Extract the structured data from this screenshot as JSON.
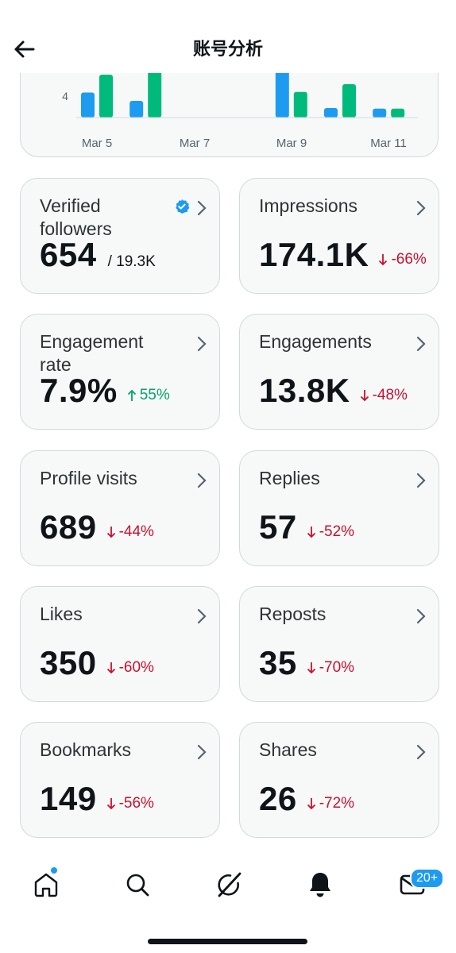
{
  "header": {
    "title": "账号分析"
  },
  "chart": {
    "y_tick": "4",
    "x_labels": [
      "Mar 5",
      "Mar 7",
      "Mar 9",
      "Mar 11"
    ],
    "colors": {
      "blue": "#1d9bf0",
      "green": "#00ba7c"
    }
  },
  "chart_data": {
    "type": "bar",
    "categories": [
      "Mar 5",
      "Mar 6",
      "Mar 7",
      "Mar 8",
      "Mar 9",
      "Mar 10",
      "Mar 11"
    ],
    "series": [
      {
        "values": [
          4.2,
          2.8,
          0,
          0,
          8.5,
          1.6,
          1.5
        ]
      },
      {
        "values": [
          7.2,
          10,
          0,
          0,
          4.3,
          5.6,
          1.5
        ]
      }
    ],
    "ytick": 4
  },
  "cards": [
    {
      "label": "Verified followers",
      "value": "654",
      "sub": "/ 19.3K",
      "verified": true
    },
    {
      "label": "Impressions",
      "value": "174.1K",
      "change": "-66%",
      "direction": "down"
    },
    {
      "label": "Engagement rate",
      "value": "7.9%",
      "change": "55%",
      "direction": "up"
    },
    {
      "label": "Engagements",
      "value": "13.8K",
      "change": "-48%",
      "direction": "down"
    },
    {
      "label": "Profile visits",
      "value": "689",
      "change": "-44%",
      "direction": "down"
    },
    {
      "label": "Replies",
      "value": "57",
      "change": "-52%",
      "direction": "down"
    },
    {
      "label": "Likes",
      "value": "350",
      "change": "-60%",
      "direction": "down"
    },
    {
      "label": "Reposts",
      "value": "35",
      "change": "-70%",
      "direction": "down"
    },
    {
      "label": "Bookmarks",
      "value": "149",
      "change": "-56%",
      "direction": "down"
    },
    {
      "label": "Shares",
      "value": "26",
      "change": "-72%",
      "direction": "down"
    }
  ],
  "tabbar": {
    "icons": [
      "home-icon",
      "search-icon",
      "grok-icon",
      "notifications-icon",
      "messages-icon"
    ],
    "messages_badge": "20+"
  }
}
